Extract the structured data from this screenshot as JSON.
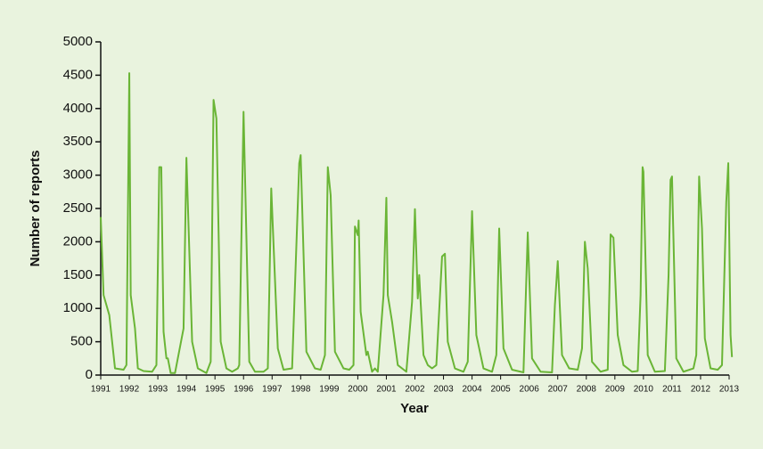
{
  "chart_data": {
    "type": "line",
    "x_label": "Year",
    "y_label": "Number of reports",
    "x": [
      1991,
      1991.1,
      1991.3,
      1991.5,
      1991.8,
      1991.9,
      1992.0,
      1992.05,
      1992.2,
      1992.3,
      1992.5,
      1992.8,
      1992.95,
      1993.05,
      1993.12,
      1993.2,
      1993.3,
      1993.35,
      1993.45,
      1993.6,
      1993.9,
      1994.0,
      1994.2,
      1994.4,
      1994.7,
      1994.85,
      1994.95,
      1995.05,
      1995.2,
      1995.4,
      1995.6,
      1995.8,
      1995.85,
      1996.0,
      1996.2,
      1996.4,
      1996.7,
      1996.85,
      1996.97,
      1997.2,
      1997.4,
      1997.7,
      1997.95,
      1998.0,
      1998.2,
      1998.5,
      1998.7,
      1998.85,
      1998.95,
      1999.05,
      1999.2,
      1999.5,
      1999.7,
      1999.85,
      1999.9,
      2000.0,
      2000.03,
      2000.1,
      2000.3,
      2000.35,
      2000.5,
      2000.6,
      2000.7,
      2000.9,
      2001.0,
      2001.05,
      2001.2,
      2001.4,
      2001.7,
      2001.9,
      2002.0,
      2002.1,
      2002.15,
      2002.3,
      2002.45,
      2002.6,
      2002.75,
      2002.95,
      2003.05,
      2003.15,
      2003.4,
      2003.7,
      2003.85,
      2004.0,
      2004.15,
      2004.4,
      2004.7,
      2004.85,
      2004.95,
      2005.1,
      2005.4,
      2005.8,
      2005.95,
      2006.1,
      2006.4,
      2006.8,
      2006.9,
      2007.0,
      2007.15,
      2007.4,
      2007.7,
      2007.85,
      2007.95,
      2008.05,
      2008.2,
      2008.5,
      2008.75,
      2008.85,
      2008.95,
      2009.1,
      2009.3,
      2009.6,
      2009.8,
      2009.9,
      2009.97,
      2010.0,
      2010.15,
      2010.4,
      2010.75,
      2010.88,
      2010.95,
      2011.0,
      2011.15,
      2011.4,
      2011.75,
      2011.85,
      2011.95,
      2012.05,
      2012.15,
      2012.35,
      2012.6,
      2012.75,
      2012.9,
      2012.97,
      2013.05,
      2013.1
    ],
    "values": [
      2370,
      1200,
      900,
      100,
      80,
      150,
      4530,
      1200,
      700,
      100,
      60,
      50,
      150,
      3120,
      3120,
      650,
      250,
      250,
      30,
      30,
      700,
      3260,
      500,
      100,
      30,
      200,
      4130,
      3850,
      500,
      100,
      50,
      100,
      150,
      3950,
      200,
      50,
      50,
      100,
      2800,
      400,
      80,
      100,
      3180,
      3300,
      350,
      100,
      80,
      300,
      3120,
      2700,
      350,
      100,
      80,
      150,
      2230,
      2100,
      2320,
      950,
      300,
      350,
      50,
      100,
      50,
      1200,
      2660,
      1200,
      800,
      150,
      50,
      1100,
      2490,
      1150,
      1500,
      300,
      150,
      100,
      150,
      1780,
      1820,
      500,
      100,
      50,
      200,
      2460,
      600,
      100,
      50,
      300,
      2200,
      400,
      80,
      40,
      2140,
      250,
      50,
      40,
      1050,
      1710,
      300,
      100,
      80,
      400,
      2000,
      1600,
      200,
      50,
      80,
      2110,
      2060,
      600,
      150,
      50,
      60,
      1200,
      3120,
      3050,
      300,
      50,
      60,
      1500,
      2930,
      2980,
      250,
      50,
      100,
      300,
      2980,
      2200,
      550,
      100,
      80,
      150,
      2600,
      3180,
      600,
      270
    ],
    "color": "#6ab536",
    "xlim": [
      1991,
      2013
    ],
    "xticks": [
      1991,
      1992,
      1993,
      1994,
      1995,
      1996,
      1997,
      1998,
      1999,
      2000,
      2001,
      2002,
      2003,
      2004,
      2005,
      2006,
      2007,
      2008,
      2009,
      2010,
      2011,
      2012,
      2013
    ],
    "ylim": [
      0,
      5000
    ],
    "yticks": [
      0,
      500,
      1000,
      1500,
      2000,
      2500,
      3000,
      3500,
      4000,
      4500,
      5000
    ]
  }
}
